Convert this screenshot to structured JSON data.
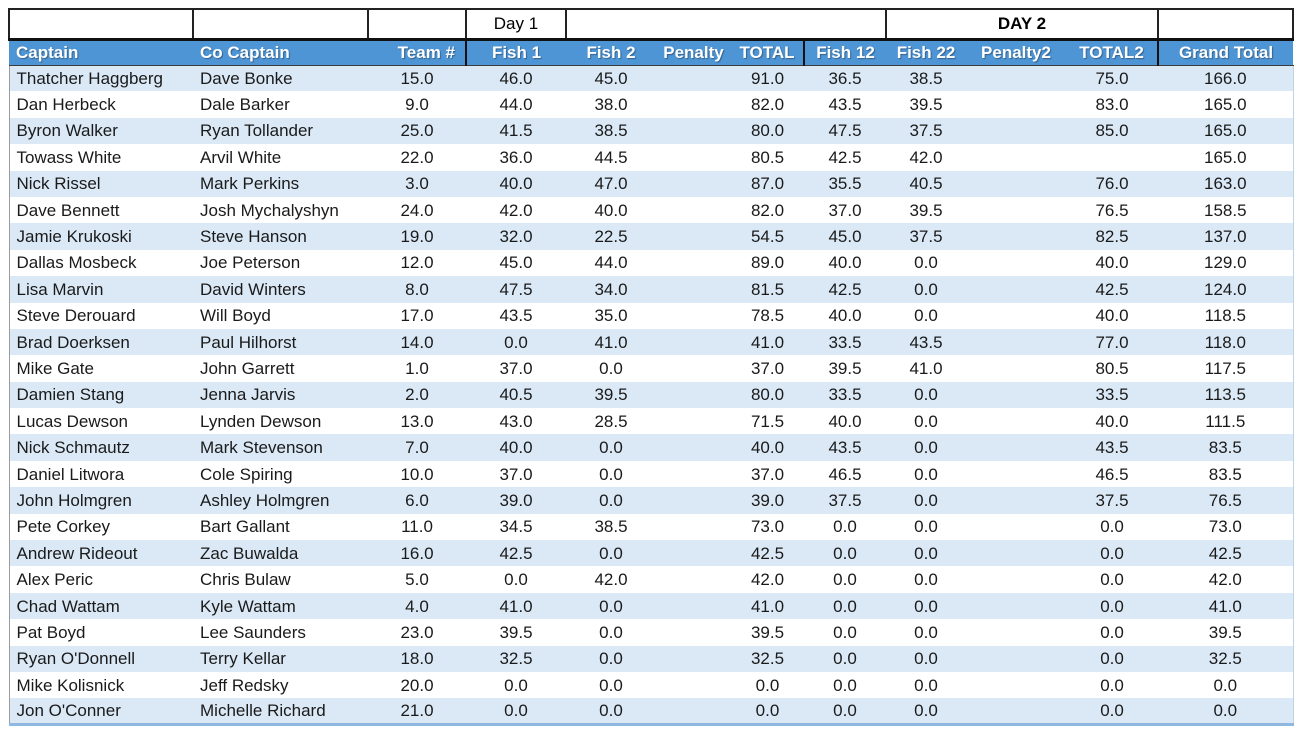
{
  "table": {
    "day_groups": {
      "day1_label": "Day 1",
      "day2_label": "DAY 2"
    },
    "columns": [
      "Captain",
      "Co Captain",
      "Team #",
      "Fish 1",
      "Fish 2",
      "Penalty",
      "TOTAL",
      "Fish 12",
      "Fish 22",
      "Penalty2",
      "TOTAL2",
      "Grand Total"
    ],
    "rows": [
      [
        "Thatcher Haggberg",
        "Dave Bonke",
        "15.0",
        "46.0",
        "45.0",
        "",
        "91.0",
        "36.5",
        "38.5",
        "",
        "75.0",
        "166.0"
      ],
      [
        "Dan Herbeck",
        "Dale Barker",
        "9.0",
        "44.0",
        "38.0",
        "",
        "82.0",
        "43.5",
        "39.5",
        "",
        "83.0",
        "165.0"
      ],
      [
        "Byron Walker",
        "Ryan Tollander",
        "25.0",
        "41.5",
        "38.5",
        "",
        "80.0",
        "47.5",
        "37.5",
        "",
        "85.0",
        "165.0"
      ],
      [
        "Towass White",
        "Arvil White",
        "22.0",
        "36.0",
        "44.5",
        "",
        "80.5",
        "42.5",
        "42.0",
        "",
        "",
        "165.0"
      ],
      [
        "Nick Rissel",
        "Mark Perkins",
        "3.0",
        "40.0",
        "47.0",
        "",
        "87.0",
        "35.5",
        "40.5",
        "",
        "76.0",
        "163.0"
      ],
      [
        "Dave Bennett",
        "Josh Mychalyshyn",
        "24.0",
        "42.0",
        "40.0",
        "",
        "82.0",
        "37.0",
        "39.5",
        "",
        "76.5",
        "158.5"
      ],
      [
        "Jamie Krukoski",
        "Steve Hanson",
        "19.0",
        "32.0",
        "22.5",
        "",
        "54.5",
        "45.0",
        "37.5",
        "",
        "82.5",
        "137.0"
      ],
      [
        "Dallas Mosbeck",
        "Joe Peterson",
        "12.0",
        "45.0",
        "44.0",
        "",
        "89.0",
        "40.0",
        "0.0",
        "",
        "40.0",
        "129.0"
      ],
      [
        "Lisa Marvin",
        "David Winters",
        "8.0",
        "47.5",
        "34.0",
        "",
        "81.5",
        "42.5",
        "0.0",
        "",
        "42.5",
        "124.0"
      ],
      [
        "Steve Derouard",
        "Will Boyd",
        "17.0",
        "43.5",
        "35.0",
        "",
        "78.5",
        "40.0",
        "0.0",
        "",
        "40.0",
        "118.5"
      ],
      [
        "Brad Doerksen",
        "Paul Hilhorst",
        "14.0",
        "0.0",
        "41.0",
        "",
        "41.0",
        "33.5",
        "43.5",
        "",
        "77.0",
        "118.0"
      ],
      [
        "Mike Gate",
        "John Garrett",
        "1.0",
        "37.0",
        "0.0",
        "",
        "37.0",
        "39.5",
        "41.0",
        "",
        "80.5",
        "117.5"
      ],
      [
        "Damien Stang",
        "Jenna Jarvis",
        "2.0",
        "40.5",
        "39.5",
        "",
        "80.0",
        "33.5",
        "0.0",
        "",
        "33.5",
        "113.5"
      ],
      [
        "Lucas Dewson",
        "Lynden Dewson",
        "13.0",
        "43.0",
        "28.5",
        "",
        "71.5",
        "40.0",
        "0.0",
        "",
        "40.0",
        "111.5"
      ],
      [
        "Nick Schmautz",
        "Mark Stevenson",
        "7.0",
        "40.0",
        "0.0",
        "",
        "40.0",
        "43.5",
        "0.0",
        "",
        "43.5",
        "83.5"
      ],
      [
        "Daniel Litwora",
        "Cole Spiring",
        "10.0",
        "37.0",
        "0.0",
        "",
        "37.0",
        "46.5",
        "0.0",
        "",
        "46.5",
        "83.5"
      ],
      [
        "John Holmgren",
        "Ashley Holmgren",
        "6.0",
        "39.0",
        "0.0",
        "",
        "39.0",
        "37.5",
        "0.0",
        "",
        "37.5",
        "76.5"
      ],
      [
        "Pete Corkey",
        "Bart Gallant",
        "11.0",
        "34.5",
        "38.5",
        "",
        "73.0",
        "0.0",
        "0.0",
        "",
        "0.0",
        "73.0"
      ],
      [
        "Andrew Rideout",
        "Zac Buwalda",
        "16.0",
        "42.5",
        "0.0",
        "",
        "42.5",
        "0.0",
        "0.0",
        "",
        "0.0",
        "42.5"
      ],
      [
        "Alex Peric",
        "Chris Bulaw",
        "5.0",
        "0.0",
        "42.0",
        "",
        "42.0",
        "0.0",
        "0.0",
        "",
        "0.0",
        "42.0"
      ],
      [
        "Chad Wattam",
        "Kyle Wattam",
        "4.0",
        "41.0",
        "0.0",
        "",
        "41.0",
        "0.0",
        "0.0",
        "",
        "0.0",
        "41.0"
      ],
      [
        "Pat Boyd",
        "Lee Saunders",
        "23.0",
        "39.5",
        "0.0",
        "",
        "39.5",
        "0.0",
        "0.0",
        "",
        "0.0",
        "39.5"
      ],
      [
        "Ryan O'Donnell",
        "Terry Kellar",
        "18.0",
        "32.5",
        "0.0",
        "",
        "32.5",
        "0.0",
        "0.0",
        "",
        "0.0",
        "32.5"
      ],
      [
        "Mike Kolisnick",
        "Jeff Redsky",
        "20.0",
        "0.0",
        "0.0",
        "",
        "0.0",
        "0.0",
        "0.0",
        "",
        "0.0",
        "0.0"
      ],
      [
        "Jon O'Conner",
        "Michelle Richard",
        "21.0",
        "0.0",
        "0.0",
        "",
        "0.0",
        "0.0",
        "0.0",
        "",
        "0.0",
        "0.0"
      ]
    ]
  },
  "colors": {
    "header_bg": "#4E95D6",
    "header_text": "#FFFFFF",
    "row_stripe": "#DBE9F7",
    "row_white": "#FFFFFF",
    "border_dark": "#1F1F1F",
    "bottom_edge": "#8FB8E0",
    "text": "#1A1A1A"
  }
}
